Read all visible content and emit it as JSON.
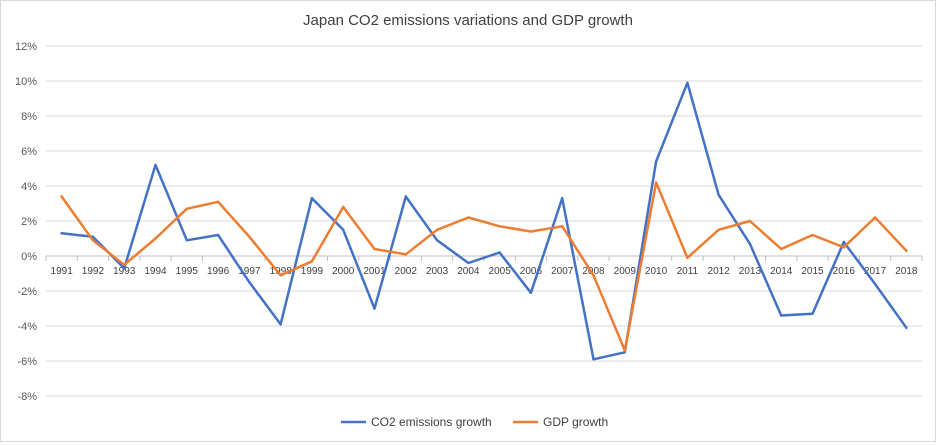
{
  "chart_data": {
    "type": "line",
    "title": "Japan CO2 emissions variations and GDP growth",
    "xlabel": "",
    "ylabel": "",
    "categories": [
      "1991",
      "1992",
      "1993",
      "1994",
      "1995",
      "1996",
      "1997",
      "1998",
      "1999",
      "2000",
      "2001",
      "2002",
      "2003",
      "2004",
      "2005",
      "2006",
      "2007",
      "2008",
      "2009",
      "2010",
      "2011",
      "2012",
      "2013",
      "2014",
      "2015",
      "2016",
      "2017",
      "2018"
    ],
    "ylim": [
      -8,
      12
    ],
    "yticks": [
      "-8%",
      "-6%",
      "-4%",
      "-2%",
      "0%",
      "2%",
      "4%",
      "6%",
      "8%",
      "10%",
      "12%"
    ],
    "grid": true,
    "legend": "bottom",
    "series": [
      {
        "name": "CO2 emissions growth",
        "color": "#4472c4",
        "values": [
          1.3,
          1.1,
          -0.7,
          5.2,
          0.9,
          1.2,
          -1.5,
          -3.9,
          3.3,
          1.5,
          -3.0,
          3.4,
          0.9,
          -0.4,
          0.2,
          -2.1,
          3.3,
          -5.9,
          -5.5,
          5.4,
          9.9,
          3.5,
          0.7,
          -3.4,
          -3.3,
          0.8,
          -1.6,
          -4.1
        ]
      },
      {
        "name": "GDP growth",
        "color": "#ed7d31",
        "values": [
          3.4,
          0.9,
          -0.5,
          1.0,
          2.7,
          3.1,
          1.1,
          -1.1,
          -0.3,
          2.8,
          0.4,
          0.1,
          1.5,
          2.2,
          1.7,
          1.4,
          1.7,
          -1.1,
          -5.4,
          4.2,
          -0.1,
          1.5,
          2.0,
          0.4,
          1.2,
          0.5,
          2.2,
          0.3
        ]
      }
    ]
  }
}
